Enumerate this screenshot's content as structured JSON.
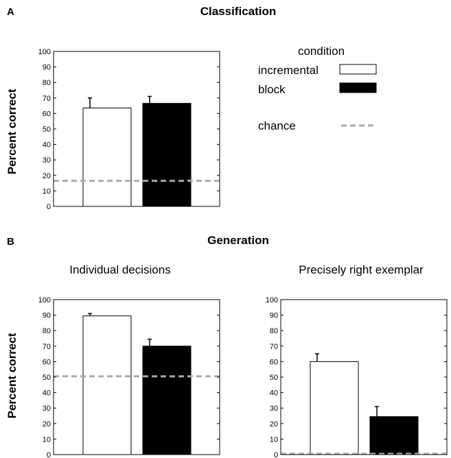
{
  "panel_a": {
    "letter": "A",
    "title": "Classification",
    "ylabel": "Percent correct"
  },
  "panel_b": {
    "letter": "B",
    "title": "Generation",
    "ylabel": "Percent correct"
  },
  "legend": {
    "title": "condition",
    "items": [
      {
        "label": "incremental",
        "style": "white-bar"
      },
      {
        "label": "block",
        "style": "black-bar"
      },
      {
        "label": "chance",
        "style": "gray-dashed-line"
      }
    ]
  },
  "colors": {
    "incremental": "#ffffff",
    "block": "#000000",
    "chance": "#aaaaaa",
    "axis": "#000000"
  },
  "chart_data": [
    {
      "type": "bar",
      "title": "",
      "ylabel": "Percent correct",
      "categories": [
        "incremental",
        "block"
      ],
      "values": [
        63.5,
        66.5
      ],
      "errors": [
        6.5,
        4.5
      ],
      "chance": 16.5,
      "ylim": [
        0,
        100
      ],
      "yticks": [
        0,
        10,
        20,
        30,
        40,
        50,
        60,
        70,
        80,
        90,
        100
      ]
    },
    {
      "type": "bar",
      "title": "Individual decisions",
      "ylabel": "Percent correct",
      "categories": [
        "incremental",
        "block"
      ],
      "values": [
        89.5,
        70
      ],
      "errors": [
        1.5,
        4.5
      ],
      "chance": 50.5,
      "ylim": [
        0,
        100
      ],
      "yticks": [
        0,
        10,
        20,
        30,
        40,
        50,
        60,
        70,
        80,
        90,
        100
      ]
    },
    {
      "type": "bar",
      "title": "Precisely right exemplar",
      "ylabel": "",
      "categories": [
        "incremental",
        "block"
      ],
      "values": [
        60,
        24.5
      ],
      "errors": [
        5,
        6.5
      ],
      "chance": 0.5,
      "ylim": [
        0,
        100
      ],
      "yticks": [
        0,
        10,
        20,
        30,
        40,
        50,
        60,
        70,
        80,
        90,
        100
      ]
    }
  ]
}
